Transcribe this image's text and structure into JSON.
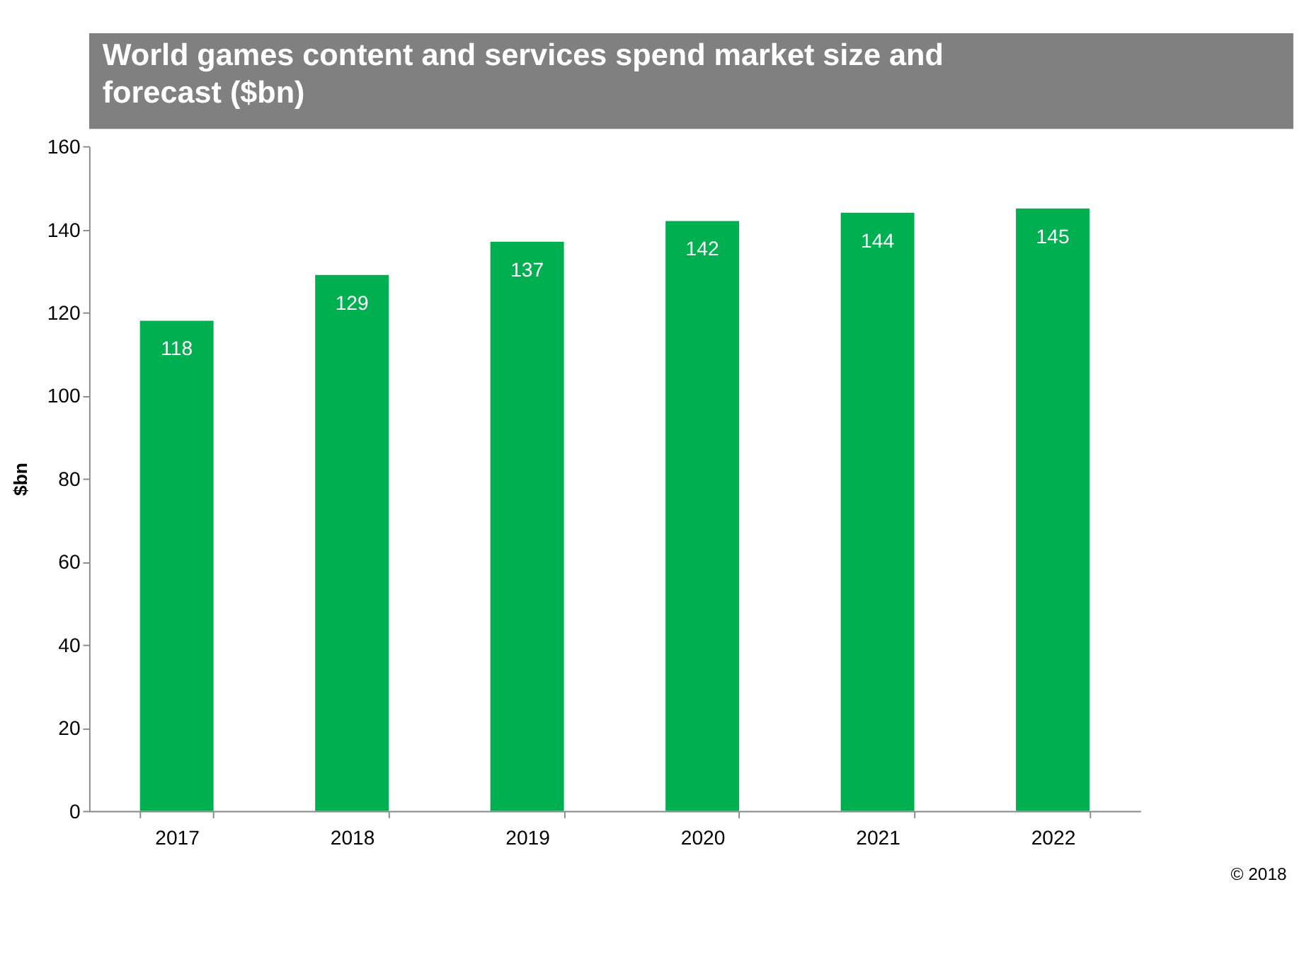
{
  "chart_data": {
    "type": "bar",
    "title": "World games content and services spend market size and forecast ($bn)",
    "ylabel": "$bn",
    "categories": [
      "2017",
      "2018",
      "2019",
      "2020",
      "2021",
      "2022"
    ],
    "values": [
      118,
      129,
      137,
      142,
      144,
      145
    ],
    "color": "#00b050",
    "ylim": [
      0,
      160
    ],
    "yticks": [
      0,
      20,
      40,
      60,
      80,
      100,
      120,
      140,
      160
    ],
    "grid": false,
    "data_labels": true,
    "annotations": [
      "© 2018"
    ]
  }
}
